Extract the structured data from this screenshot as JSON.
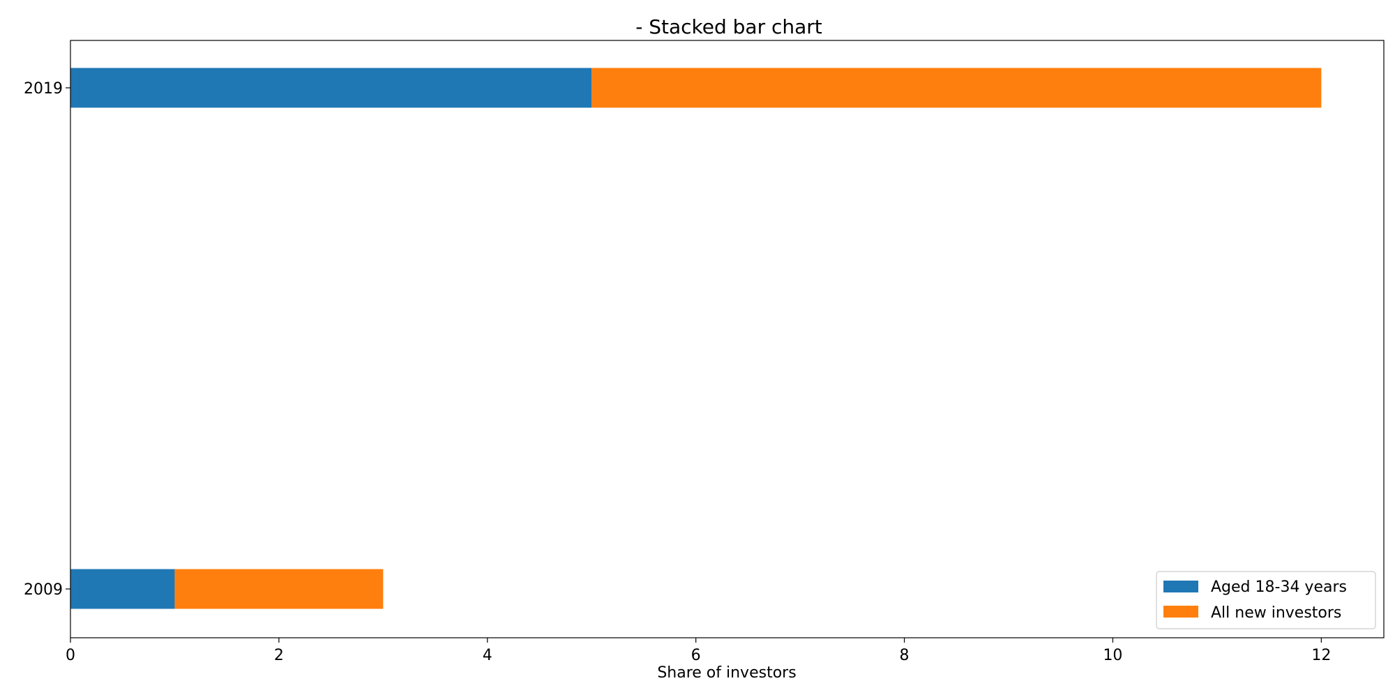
{
  "chart_data": {
    "type": "bar",
    "orientation": "horizontal",
    "stacked": true,
    "title": "- Stacked bar chart",
    "xlabel": "Share of investors",
    "ylabel": "",
    "categories": [
      "2009",
      "2019"
    ],
    "series": [
      {
        "name": "Aged 18-34 years",
        "values": [
          1,
          5
        ],
        "color": "#1f77b4"
      },
      {
        "name": "All new investors",
        "values": [
          2,
          7
        ],
        "color": "#ff7f0e"
      }
    ],
    "xlim": [
      0,
      12.6
    ],
    "xticks": [
      "0",
      "2",
      "4",
      "6",
      "8",
      "10",
      "12"
    ],
    "grid": false,
    "legend_position": "bottom-right"
  }
}
